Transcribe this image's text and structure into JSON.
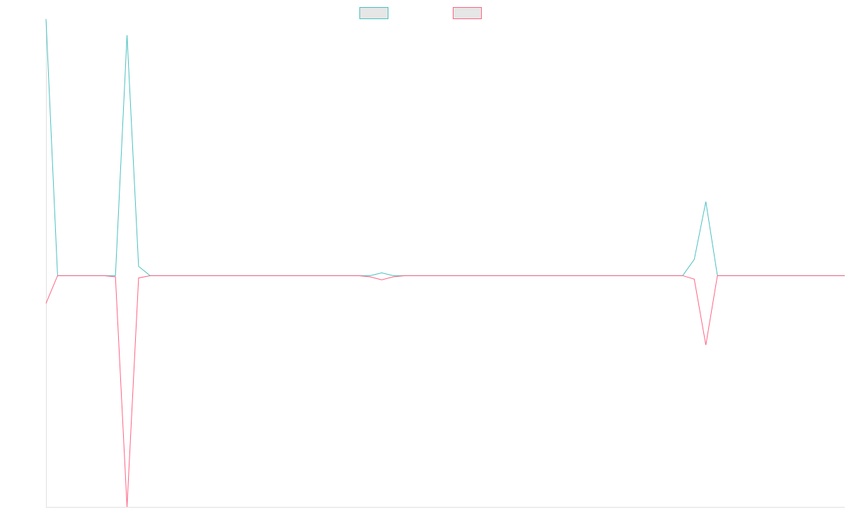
{
  "chart_data": {
    "type": "line",
    "title": "",
    "xlabel": "",
    "ylabel": "",
    "grid": false,
    "legend_position": "top-center",
    "x": [
      0,
      1,
      2,
      3,
      4,
      5,
      6,
      7,
      8,
      9,
      10,
      11,
      12,
      13,
      14,
      15,
      16,
      17,
      18,
      19,
      20,
      21,
      22,
      23,
      24,
      25,
      26,
      27,
      28,
      29,
      30,
      31,
      32,
      33,
      34,
      35,
      36,
      37,
      38,
      39,
      40,
      41,
      42,
      43,
      44,
      45,
      46,
      47,
      48,
      49,
      50,
      51,
      52,
      53,
      54,
      55,
      56,
      57,
      58,
      59,
      60,
      61,
      62,
      63,
      64,
      65,
      66,
      67,
      68,
      69
    ],
    "ylim": [
      -1,
      1.1
    ],
    "series": [
      {
        "name": "",
        "color": "#4bc0c0",
        "fill": "#e6e6e6",
        "values": [
          1.11,
          0,
          0,
          0,
          0,
          0,
          0,
          1.04,
          0.04,
          0,
          0,
          0,
          0,
          0,
          0,
          0,
          0,
          0,
          0,
          0,
          0,
          0,
          0,
          0,
          0,
          0,
          0,
          0,
          0,
          0.012,
          0,
          0,
          0,
          0,
          0,
          0,
          0,
          0,
          0,
          0,
          0,
          0,
          0,
          0,
          0,
          0,
          0,
          0,
          0,
          0,
          0,
          0,
          0,
          0,
          0,
          0,
          0.07,
          0.32,
          0,
          0,
          0,
          0,
          0,
          0,
          0,
          0,
          0,
          0,
          0,
          0
        ]
      },
      {
        "name": "",
        "color": "#ff6384",
        "fill": "#e6e6e6",
        "values": [
          -0.12,
          0,
          0,
          0,
          0,
          0,
          -0.005,
          -1.0,
          -0.01,
          0,
          0,
          0,
          0,
          0,
          0,
          0,
          0,
          0,
          0,
          0,
          0,
          0,
          0,
          0,
          0,
          0,
          0,
          0,
          -0.005,
          -0.018,
          -0.005,
          0,
          0,
          0,
          0,
          0,
          0,
          0,
          0,
          0,
          0,
          0,
          0,
          0,
          0,
          0,
          0,
          0,
          0,
          0,
          0,
          0,
          0,
          0,
          0,
          0,
          -0.015,
          -0.3,
          0,
          0,
          0,
          0,
          0,
          0,
          0,
          0,
          0,
          0,
          0,
          0
        ]
      }
    ]
  }
}
